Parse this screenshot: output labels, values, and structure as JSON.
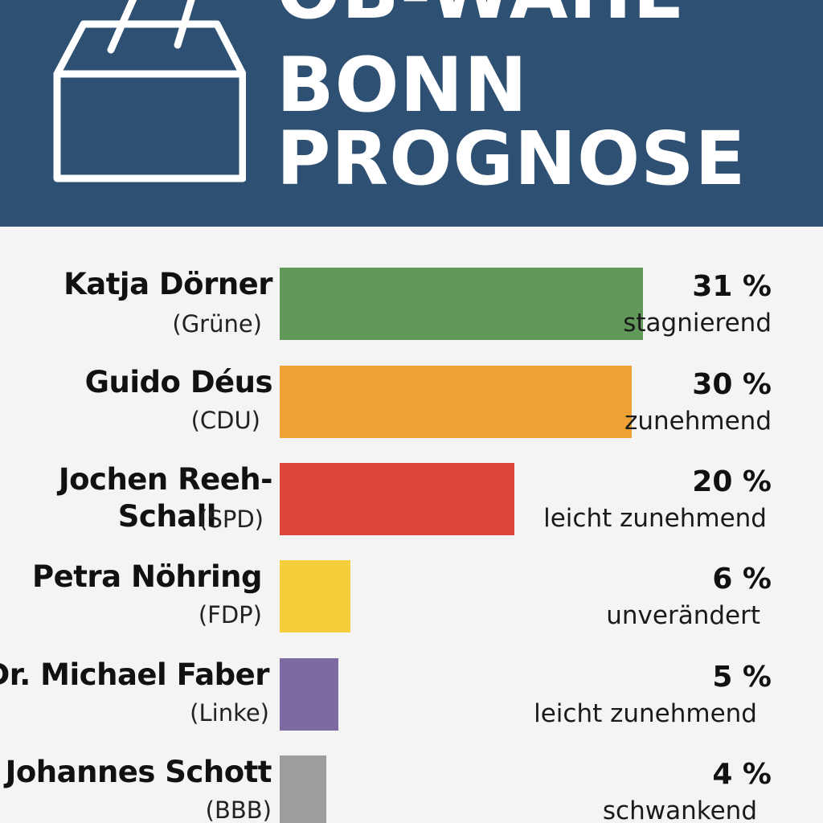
{
  "header": {
    "title_lines": [
      "OB-WAHL",
      "BONN",
      "PROGNOSE"
    ],
    "icon": "ballot-box-icon",
    "background_color": "#2d5073"
  },
  "chart_data": {
    "type": "bar",
    "orientation": "horizontal",
    "title": "OB-WAHL BONN PROGNOSE",
    "xlim": [
      0,
      37
    ],
    "unit": "%",
    "candidates": [
      {
        "name": "Katja Dörner",
        "name_lines": [
          "Katja Dörner"
        ],
        "party": "(Grüne)",
        "value": 31,
        "value_label": "31 %",
        "trend": "stagnierend",
        "color": "#62995a"
      },
      {
        "name": "Guido Déus",
        "name_lines": [
          "Guido Déus"
        ],
        "party": "(CDU)",
        "value": 30,
        "value_label": "30 %",
        "trend": "zunehmend",
        "color": "#efa134"
      },
      {
        "name": "Jochen Reeh-Schall",
        "name_lines": [
          "Jochen Reeh-",
          "Schall"
        ],
        "party": "(SPD)",
        "value": 20,
        "value_label": "20 %",
        "trend": "leicht zunehmend",
        "color": "#de463b"
      },
      {
        "name": "Petra Nöhring",
        "name_lines": [
          "Petra Nöhring"
        ],
        "party": "(FDP)",
        "value": 6,
        "value_label": "6 %",
        "trend": "unverändert",
        "color": "#f6cd3a"
      },
      {
        "name": "Dr. Michael Faber",
        "name_lines": [
          "Dr. Michael Faber"
        ],
        "party": "(Linke)",
        "value": 5,
        "value_label": "5 %",
        "trend": "leicht zunehmend",
        "color": "#7d6aa2"
      },
      {
        "name": "Johannes Schott",
        "name_lines": [
          "Johannes Schott"
        ],
        "party": "(BBB)",
        "value": 4,
        "value_label": "4 %",
        "trend": "schwankend",
        "color": "#9d9d9d"
      }
    ]
  }
}
